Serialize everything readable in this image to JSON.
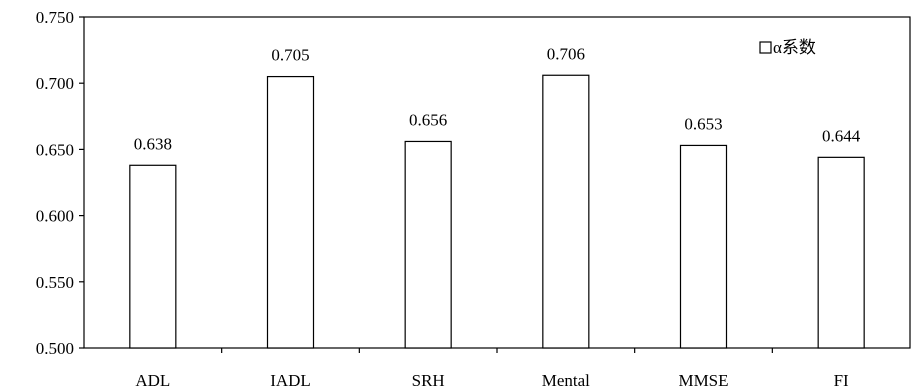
{
  "chart_data": {
    "type": "bar",
    "categories": [
      "ADL",
      "IADL",
      "SRH",
      "Mental",
      "MMSE",
      "FI"
    ],
    "series": [
      {
        "name": "α系数",
        "values": [
          0.638,
          0.705,
          0.656,
          0.706,
          0.653,
          0.644
        ]
      }
    ],
    "data_labels": [
      "0.638",
      "0.705",
      "0.656",
      "0.706",
      "0.653",
      "0.644"
    ],
    "y_ticks": [
      "0.500",
      "0.550",
      "0.600",
      "0.650",
      "0.700",
      "0.750"
    ],
    "ylim": [
      0.5,
      0.75
    ],
    "grid": false,
    "legend": {
      "label": "α系数",
      "placement": "top-right"
    },
    "colors": {
      "bar_fill": "#ffffff",
      "bar_stroke": "#000000",
      "axis": "#000000"
    }
  }
}
